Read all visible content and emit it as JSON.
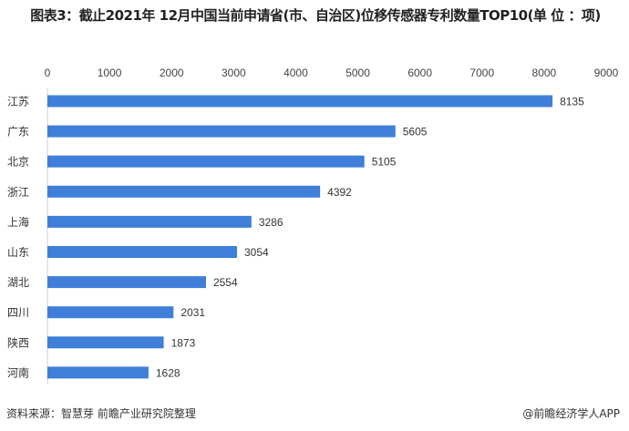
{
  "chart_data": {
    "type": "bar",
    "orientation": "horizontal",
    "title": "图表3：截止2021年 12月中国当前申请省(市、自治区)位移传感器专利数量TOP10(单 位 ：项)",
    "categories": [
      "江苏",
      "广东",
      "北京",
      "浙江",
      "上海",
      "山东",
      "湖北",
      "四川",
      "陕西",
      "河南"
    ],
    "values": [
      8135,
      5605,
      5105,
      4392,
      3286,
      3054,
      2554,
      2031,
      1873,
      1628
    ],
    "xlim": [
      0,
      9000
    ],
    "ticks": [
      0,
      1000,
      2000,
      3000,
      4000,
      5000,
      6000,
      7000,
      8000,
      9000
    ],
    "axis_position": "top",
    "grid": false,
    "bar_color": "#3f7fd9"
  },
  "footer": {
    "source": "资料来源：智慧芽 前瞻产业研究院整理",
    "brand": "@前瞻经济学人APP"
  }
}
